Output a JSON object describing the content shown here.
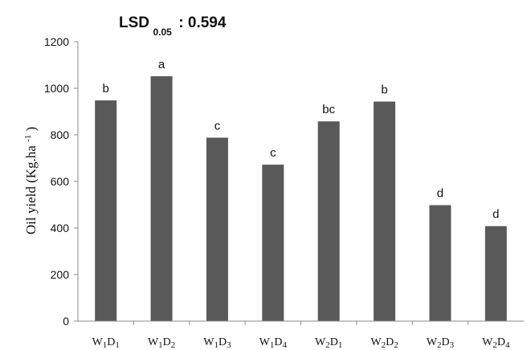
{
  "chart_data": {
    "type": "bar",
    "title": {
      "main": "LSD",
      "sub": "0.05",
      "value": ": 0.594"
    },
    "ylabel": {
      "main": "Oil yield (Kg.ha",
      "sup": "-1",
      "end": ")"
    },
    "xlabel": "",
    "ylim": [
      0,
      1200
    ],
    "yticks": [
      0,
      200,
      400,
      600,
      800,
      1000,
      1200
    ],
    "grid": false,
    "legend": "none",
    "bar_color": "#595959",
    "categories": [
      {
        "w": "W",
        "w_sub": "1",
        "d": "D",
        "d_sub": "1"
      },
      {
        "w": "W",
        "w_sub": "1",
        "d": "D",
        "d_sub": "2"
      },
      {
        "w": "W",
        "w_sub": "1",
        "d": "D",
        "d_sub": "3"
      },
      {
        "w": "W",
        "w_sub": "1",
        "d": "D",
        "d_sub": "4"
      },
      {
        "w": "W",
        "w_sub": "2",
        "d": "D",
        "d_sub": "1"
      },
      {
        "w": "W",
        "w_sub": "2",
        "d": "D",
        "d_sub": "2"
      },
      {
        "w": "W",
        "w_sub": "2",
        "d": "D",
        "d_sub": "3"
      },
      {
        "w": "W",
        "w_sub": "2",
        "d": "D",
        "d_sub": "4"
      }
    ],
    "values": [
      948,
      1052,
      788,
      672,
      858,
      943,
      498,
      408
    ],
    "letters": [
      "b",
      "a",
      "c",
      "c",
      "bc",
      "b",
      "d",
      "d"
    ]
  }
}
